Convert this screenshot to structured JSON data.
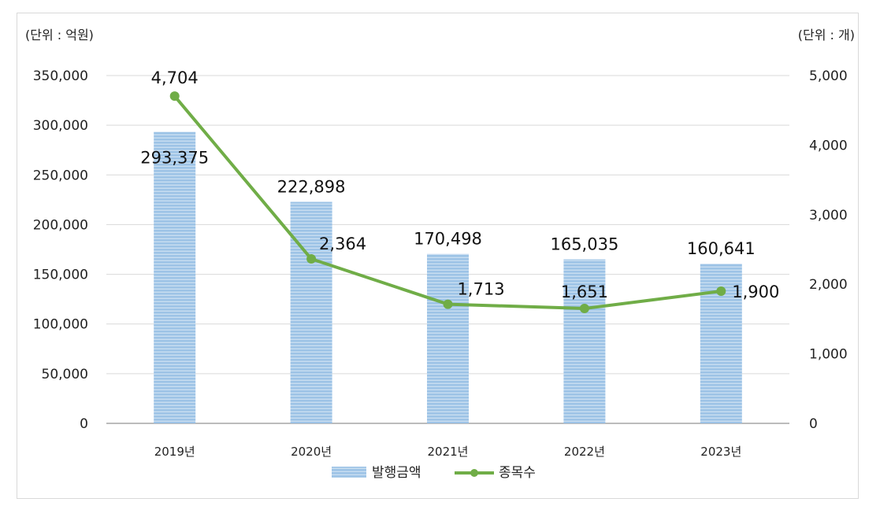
{
  "chart_data": {
    "type": "bar+line",
    "categories": [
      "2019년",
      "2020년",
      "2021년",
      "2022년",
      "2023년"
    ],
    "series": [
      {
        "name": "발행금액",
        "type": "bar",
        "axis": "left",
        "color": "#9dc3e6",
        "values": [
          293375,
          222898,
          170498,
          165035,
          160641
        ]
      },
      {
        "name": "종목수",
        "type": "line",
        "axis": "right",
        "color": "#70ad47",
        "values": [
          4704,
          2364,
          1713,
          1651,
          1900
        ]
      }
    ],
    "bar_labels": [
      "293,375",
      "222,898",
      "170,498",
      "165,035",
      "160,641"
    ],
    "line_labels": [
      "4,704",
      "2,364",
      "1,713",
      "1,651",
      "1,900"
    ],
    "left_axis": {
      "unit_label": "(단위 : 억원)",
      "ylim": [
        0,
        350000
      ],
      "ticks": [
        "0",
        "50,000",
        "100,000",
        "150,000",
        "200,000",
        "250,000",
        "300,000",
        "350,000"
      ]
    },
    "right_axis": {
      "unit_label": "(단위 : 개)",
      "ylim": [
        0,
        5000
      ],
      "ticks": [
        "0",
        "1,000",
        "2,000",
        "3,000",
        "4,000",
        "5,000"
      ]
    },
    "grid": true,
    "legend_position": "bottom"
  }
}
